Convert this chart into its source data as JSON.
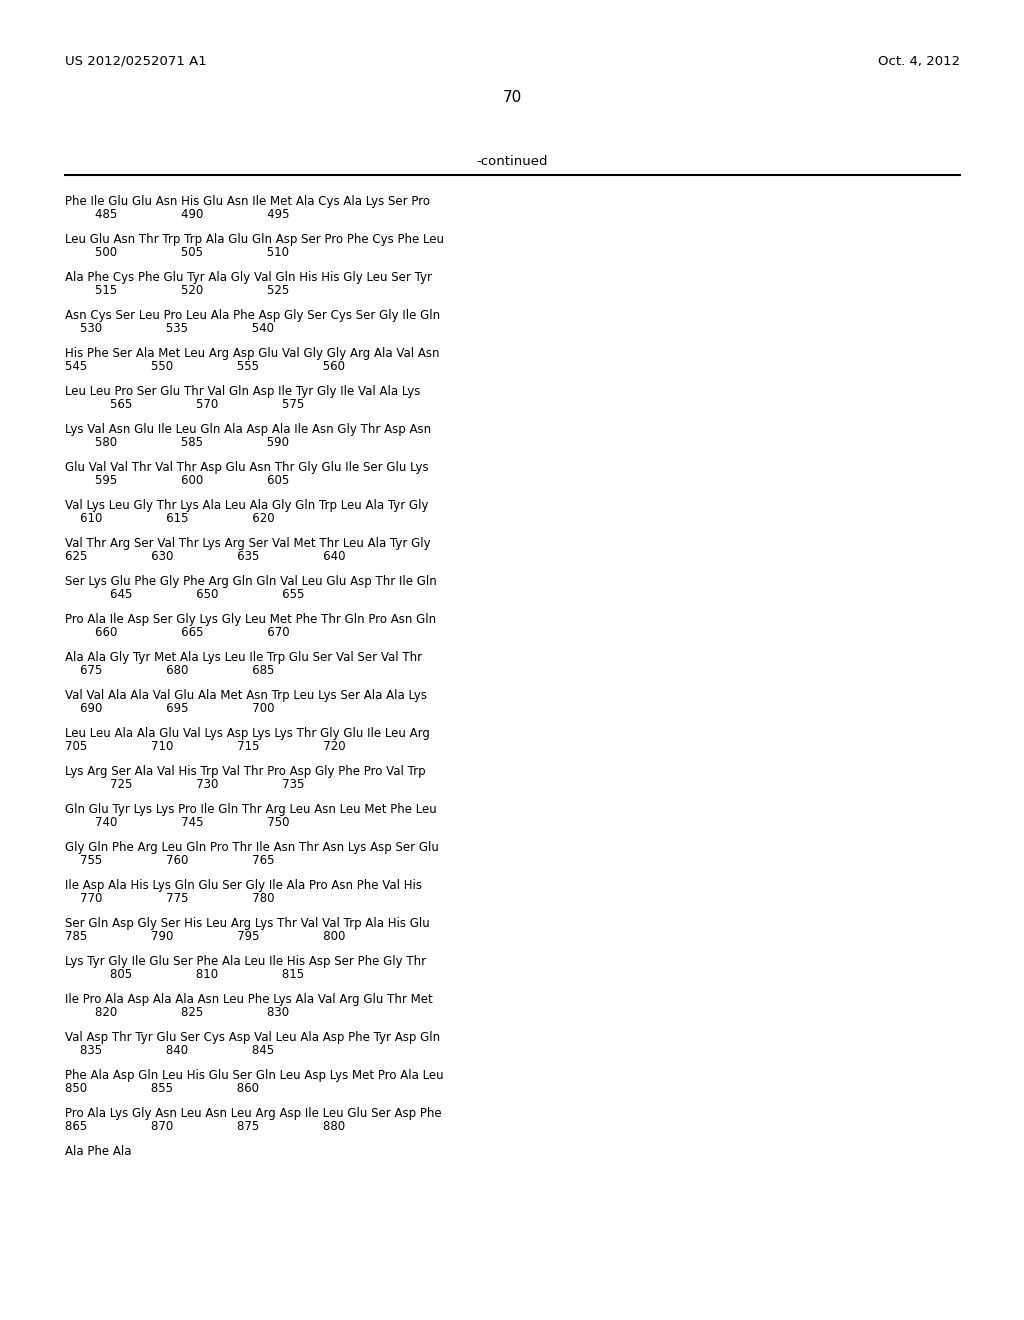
{
  "header_left": "US 2012/0252071 A1",
  "header_right": "Oct. 4, 2012",
  "page_number": "70",
  "continued_label": "-continued",
  "seq_data": [
    [
      "Phe Ile Glu Glu Asn His Glu Asn Ile Met Ala Cys Ala Lys Ser Pro",
      "        485                 490                 495"
    ],
    [
      "Leu Glu Asn Thr Trp Trp Ala Glu Gln Asp Ser Pro Phe Cys Phe Leu",
      "        500                 505                 510"
    ],
    [
      "Ala Phe Cys Phe Glu Tyr Ala Gly Val Gln His His Gly Leu Ser Tyr",
      "        515                 520                 525"
    ],
    [
      "Asn Cys Ser Leu Pro Leu Ala Phe Asp Gly Ser Cys Ser Gly Ile Gln",
      "    530                 535                 540"
    ],
    [
      "His Phe Ser Ala Met Leu Arg Asp Glu Val Gly Gly Arg Ala Val Asn",
      "545                 550                 555                 560"
    ],
    [
      "Leu Leu Pro Ser Glu Thr Val Gln Asp Ile Tyr Gly Ile Val Ala Lys",
      "            565                 570                 575"
    ],
    [
      "Lys Val Asn Glu Ile Leu Gln Ala Asp Ala Ile Asn Gly Thr Asp Asn",
      "        580                 585                 590"
    ],
    [
      "Glu Val Val Thr Val Thr Asp Glu Asn Thr Gly Glu Ile Ser Glu Lys",
      "        595                 600                 605"
    ],
    [
      "Val Lys Leu Gly Thr Lys Ala Leu Ala Gly Gln Trp Leu Ala Tyr Gly",
      "    610                 615                 620"
    ],
    [
      "Val Thr Arg Ser Val Thr Lys Arg Ser Val Met Thr Leu Ala Tyr Gly",
      "625                 630                 635                 640"
    ],
    [
      "Ser Lys Glu Phe Gly Phe Arg Gln Gln Val Leu Glu Asp Thr Ile Gln",
      "            645                 650                 655"
    ],
    [
      "Pro Ala Ile Asp Ser Gly Lys Gly Leu Met Phe Thr Gln Pro Asn Gln",
      "        660                 665                 670"
    ],
    [
      "Ala Ala Gly Tyr Met Ala Lys Leu Ile Trp Glu Ser Val Ser Val Thr",
      "    675                 680                 685"
    ],
    [
      "Val Val Ala Ala Val Glu Ala Met Asn Trp Leu Lys Ser Ala Ala Lys",
      "    690                 695                 700"
    ],
    [
      "Leu Leu Ala Ala Glu Val Lys Asp Lys Lys Thr Gly Glu Ile Leu Arg",
      "705                 710                 715                 720"
    ],
    [
      "Lys Arg Ser Ala Val His Trp Val Thr Pro Asp Gly Phe Pro Val Trp",
      "            725                 730                 735"
    ],
    [
      "Gln Glu Tyr Lys Lys Pro Ile Gln Thr Arg Leu Asn Leu Met Phe Leu",
      "        740                 745                 750"
    ],
    [
      "Gly Gln Phe Arg Leu Gln Pro Thr Ile Asn Thr Asn Lys Asp Ser Glu",
      "    755                 760                 765"
    ],
    [
      "Ile Asp Ala His Lys Gln Glu Ser Gly Ile Ala Pro Asn Phe Val His",
      "    770                 775                 780"
    ],
    [
      "Ser Gln Asp Gly Ser His Leu Arg Lys Thr Val Val Trp Ala His Glu",
      "785                 790                 795                 800"
    ],
    [
      "Lys Tyr Gly Ile Glu Ser Phe Ala Leu Ile His Asp Ser Phe Gly Thr",
      "            805                 810                 815"
    ],
    [
      "Ile Pro Ala Asp Ala Ala Asn Leu Phe Lys Ala Val Arg Glu Thr Met",
      "        820                 825                 830"
    ],
    [
      "Val Asp Thr Tyr Glu Ser Cys Asp Val Leu Ala Asp Phe Tyr Asp Gln",
      "    835                 840                 845"
    ],
    [
      "Phe Ala Asp Gln Leu His Glu Ser Gln Leu Asp Lys Met Pro Ala Leu",
      "850                 855                 860"
    ],
    [
      "Pro Ala Lys Gly Asn Leu Asn Leu Arg Asp Ile Leu Glu Ser Asp Phe",
      "865                 870                 875                 880"
    ],
    [
      "Ala Phe Ala",
      ""
    ]
  ]
}
